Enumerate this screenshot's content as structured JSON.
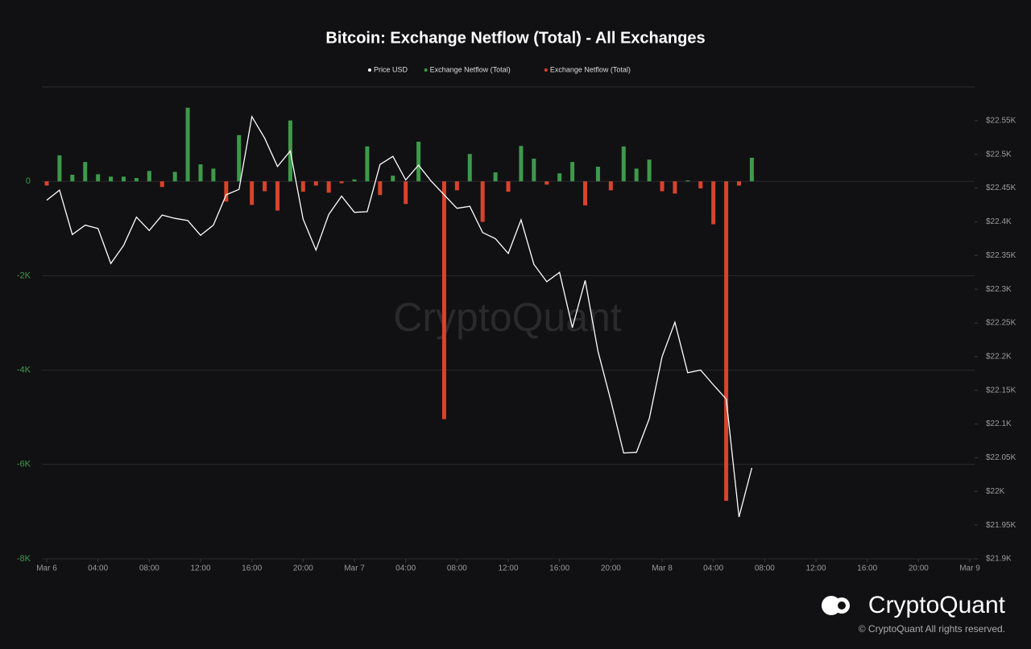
{
  "chart_data": {
    "type": "combo",
    "title": "Bitcoin: Exchange Netflow (Total) - All Exchanges",
    "watermark": "CryptoQuant",
    "brand": "CryptoQuant",
    "copyright": "© CryptoQuant All rights reserved.",
    "categories": [
      "Mar 6",
      null,
      null,
      null,
      "04:00",
      null,
      null,
      null,
      "08:00",
      null,
      null,
      null,
      "12:00",
      null,
      null,
      null,
      "16:00",
      null,
      null,
      null,
      "20:00",
      null,
      null,
      null,
      "Mar 7",
      null,
      null,
      null,
      "04:00",
      null,
      null,
      null,
      "08:00",
      null,
      null,
      null,
      "12:00",
      null,
      null,
      null,
      "16:00",
      null,
      null,
      null,
      "20:00",
      null,
      null,
      null,
      "Mar 8",
      null,
      null,
      null,
      "04:00",
      null,
      null,
      null,
      "08:00",
      null,
      null,
      null,
      "12:00",
      null,
      null,
      null,
      "16:00",
      null,
      null,
      null,
      "20:00",
      null,
      null,
      null,
      "Mar 9"
    ],
    "series": [
      {
        "name": "Price USD",
        "type": "line",
        "axis": "y2",
        "color": "#ffffff",
        "values": [
          22432,
          22447,
          22381,
          22395,
          22390,
          22338,
          22365,
          22407,
          22387,
          22410,
          22405,
          22402,
          22380,
          22395,
          22440,
          22448,
          22556,
          22524,
          22482,
          22505,
          22404,
          22358,
          22411,
          22438,
          22414,
          22415,
          22485,
          22497,
          22462,
          22484,
          22460,
          22440,
          22420,
          22423,
          22384,
          22375,
          22353,
          22403,
          22337,
          22311,
          22325,
          22243,
          22313,
          22208,
          22135,
          22057,
          22058,
          22108,
          22200,
          22251,
          22176,
          22180,
          22158,
          22137,
          21962,
          22035,
          null,
          null,
          null,
          null,
          null,
          null,
          null,
          null,
          null,
          null,
          null,
          null,
          null,
          null,
          null,
          null,
          null
        ]
      },
      {
        "name": "Exchange Netflow (Total)",
        "type": "bar",
        "color": "#3d9a4b",
        "values": [
          null,
          550,
          140,
          410,
          150,
          100,
          100,
          70,
          220,
          null,
          200,
          1560,
          360,
          270,
          null,
          980,
          null,
          null,
          null,
          1290,
          null,
          null,
          null,
          null,
          40,
          740,
          null,
          120,
          null,
          840,
          null,
          null,
          null,
          580,
          null,
          190,
          null,
          750,
          480,
          null,
          170,
          410,
          null,
          310,
          null,
          740,
          270,
          460,
          null,
          null,
          20,
          null,
          null,
          null,
          null,
          500,
          null,
          null,
          null,
          null,
          null,
          null,
          null,
          null,
          null,
          null,
          null,
          null,
          null,
          null,
          null,
          null,
          null
        ]
      },
      {
        "name": "Exchange Netflow (Total)",
        "type": "bar",
        "color": "#d9432c",
        "values": [
          -90,
          null,
          null,
          null,
          null,
          null,
          null,
          null,
          null,
          -120,
          null,
          null,
          null,
          null,
          -430,
          null,
          -500,
          -210,
          -620,
          null,
          -220,
          -90,
          -240,
          -40,
          null,
          null,
          -290,
          null,
          -480,
          null,
          null,
          -5040,
          -190,
          null,
          -860,
          null,
          -220,
          null,
          null,
          -70,
          null,
          null,
          -510,
          null,
          -190,
          null,
          null,
          null,
          -210,
          -260,
          null,
          -150,
          -910,
          -6770,
          -90,
          null,
          null,
          null,
          null,
          null,
          null,
          null,
          null,
          null,
          null,
          null,
          null,
          null,
          null,
          null,
          null,
          null,
          null
        ]
      }
    ],
    "ylim": [
      -8000,
      2000
    ],
    "yticks": [
      {
        "value": -8000,
        "label": "-8K"
      },
      {
        "value": -6000,
        "label": "-6K"
      },
      {
        "value": -4000,
        "label": "-4K"
      },
      {
        "value": -2000,
        "label": "-2K"
      },
      0
    ],
    "y2lim": [
      21900,
      22600
    ],
    "y2ticks": [
      {
        "value": 21900,
        "label": "$21.9K"
      },
      {
        "value": 21950,
        "label": "$21.95K"
      },
      {
        "value": 22000,
        "label": "$22K"
      },
      {
        "value": 22050,
        "label": "$22.05K"
      },
      {
        "value": 22100,
        "label": "$22.1K"
      },
      {
        "value": 22150,
        "label": "$22.15K"
      },
      {
        "value": 22200,
        "label": "$22.2K"
      },
      {
        "value": 22250,
        "label": "$22.25K"
      },
      {
        "value": 22300,
        "label": "$22.3K"
      },
      {
        "value": 22350,
        "label": "$22.35K"
      },
      {
        "value": 22400,
        "label": "$22.4K"
      },
      {
        "value": 22450,
        "label": "$22.45K"
      },
      {
        "value": 22500,
        "label": "$22.5K"
      },
      {
        "value": 22550,
        "label": "$22.55K"
      }
    ],
    "grid": true
  }
}
